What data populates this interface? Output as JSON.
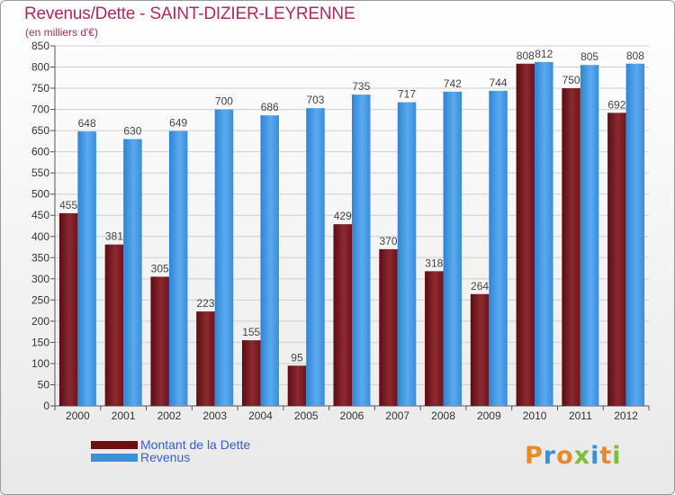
{
  "header": {
    "title": "Revenus/Dette - SAINT-DIZIER-LEYRENNE",
    "subtitle": "(en milliers d'€)"
  },
  "colors": {
    "dette": "#7a1f24",
    "revenus": "#3d8fd9",
    "title": "#b2285a",
    "legend_text": "#3a5bd6"
  },
  "legend": {
    "items": [
      {
        "label": "Montant de la Dette",
        "color": "#6b0f14"
      },
      {
        "label": "Revenus",
        "color": "#3d8fd9"
      }
    ]
  },
  "logo": {
    "text": "Proxiti"
  },
  "chart_data": {
    "type": "bar",
    "title": "Revenus/Dette - SAINT-DIZIER-LEYRENNE",
    "subtitle": "(en milliers d'€)",
    "categories": [
      "2000",
      "2001",
      "2002",
      "2003",
      "2004",
      "2005",
      "2006",
      "2007",
      "2008",
      "2009",
      "2010",
      "2011",
      "2012"
    ],
    "series": [
      {
        "name": "Montant de la Dette",
        "values": [
          455,
          381,
          305,
          223,
          155,
          95,
          429,
          370,
          318,
          264,
          808,
          750,
          692
        ]
      },
      {
        "name": "Revenus",
        "values": [
          648,
          630,
          649,
          700,
          686,
          703,
          735,
          717,
          742,
          744,
          812,
          805,
          808
        ]
      }
    ],
    "ylim": [
      0,
      850
    ],
    "yticks": [
      0,
      50,
      100,
      150,
      200,
      250,
      300,
      350,
      400,
      450,
      500,
      550,
      600,
      650,
      700,
      750,
      800,
      850
    ],
    "grid": true,
    "legend_position": "bottom-left"
  }
}
